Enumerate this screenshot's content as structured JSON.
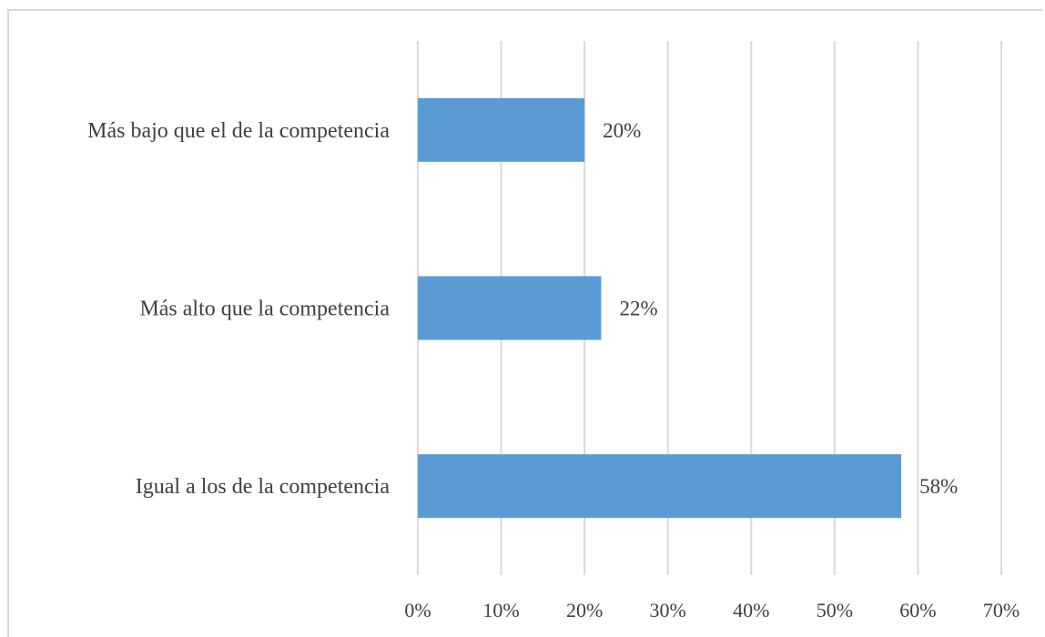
{
  "chart_data": {
    "type": "bar",
    "orientation": "horizontal",
    "categories": [
      "Más bajo que el de la competencia",
      "Más alto que la competencia",
      "Igual a los de la competencia"
    ],
    "values": [
      20,
      22,
      58
    ],
    "data_labels": [
      "20%",
      "22%",
      "58%"
    ],
    "xlim": [
      0,
      70
    ],
    "x_ticks": [
      0,
      10,
      20,
      30,
      40,
      50,
      60,
      70
    ],
    "x_tick_labels": [
      "0%",
      "10%",
      "20%",
      "30%",
      "40%",
      "50%",
      "60%",
      "70%"
    ],
    "title": "",
    "xlabel": "",
    "ylabel": "",
    "grid": "vertical",
    "legend": "none",
    "colors": {
      "bar": "#5b9bd5",
      "grid": "#d9d9d9",
      "text": "#404040"
    }
  }
}
